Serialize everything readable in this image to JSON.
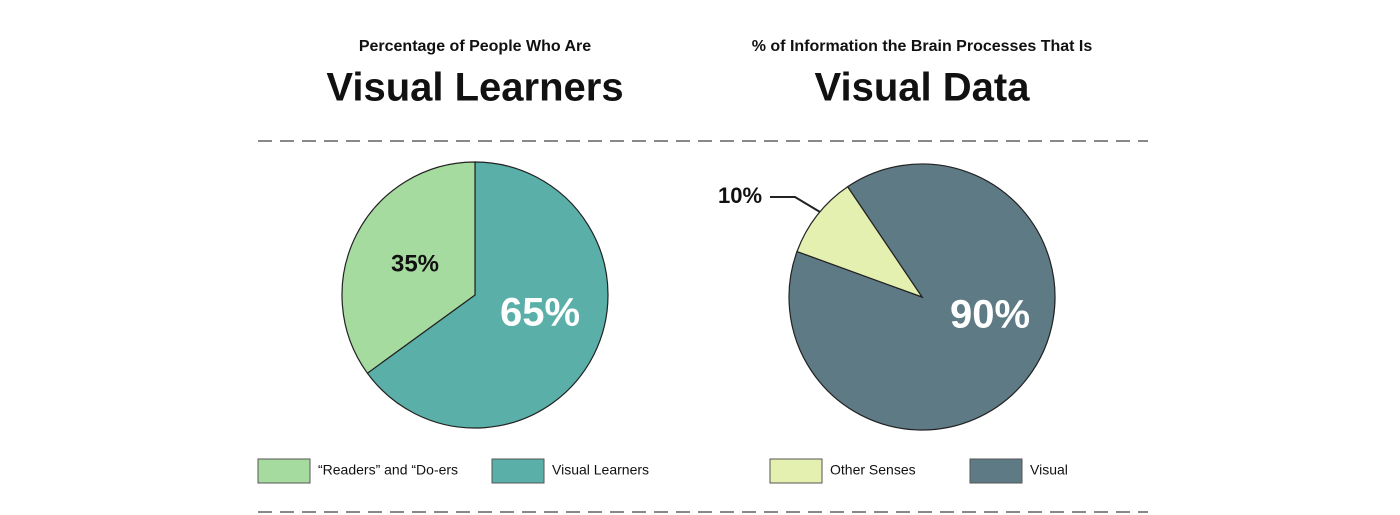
{
  "chart_data": [
    {
      "type": "pie",
      "subtitle": "Percentage of People Who Are",
      "title": "Visual Learners",
      "categories": [
        "“Readers” and “Do-ers",
        "Visual Learners"
      ],
      "values": [
        35,
        65
      ],
      "value_labels": [
        "35%",
        "65%"
      ],
      "colors": [
        "#a6dba0",
        "#5aafa8"
      ]
    },
    {
      "type": "pie",
      "subtitle": "% of Information the Brain Processes That Is",
      "title": "Visual Data",
      "categories": [
        "Other Senses",
        "Visual"
      ],
      "values": [
        10,
        90
      ],
      "value_labels": [
        "10%",
        "90%"
      ],
      "colors": [
        "#e3f0b0",
        "#5e7a85"
      ]
    }
  ]
}
